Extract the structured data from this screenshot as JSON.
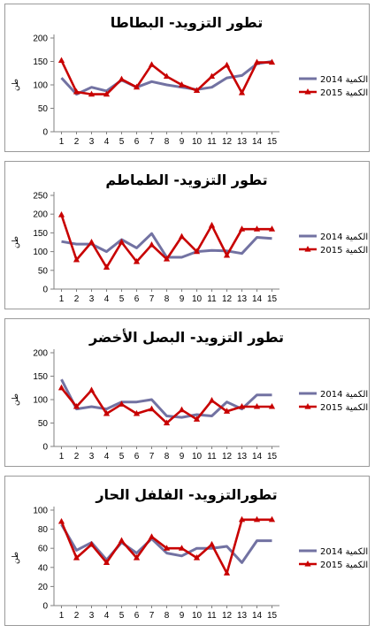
{
  "chart_data": [
    {
      "type": "line",
      "title": "تطور التزويد- البطاطا",
      "ylabel": "طن",
      "ylim": [
        0,
        200
      ],
      "yticks": [
        0,
        50,
        100,
        150,
        200
      ],
      "categories": [
        "1",
        "2",
        "3",
        "4",
        "5",
        "6",
        "7",
        "8",
        "9",
        "10",
        "11",
        "12",
        "13",
        "14",
        "15"
      ],
      "legend_position": "right",
      "series": [
        {
          "name": "الكمية 2014",
          "color": "#7272a2",
          "marker": "none",
          "values": [
            115,
            80,
            95,
            87,
            110,
            95,
            107,
            100,
            95,
            90,
            95,
            115,
            120,
            145,
            150
          ]
        },
        {
          "name": "الكمية 2015",
          "color": "#c80000",
          "marker": "triangle",
          "values": [
            152,
            85,
            80,
            80,
            112,
            95,
            143,
            118,
            100,
            88,
            118,
            142,
            83,
            148,
            148
          ]
        }
      ]
    },
    {
      "type": "line",
      "title": "تطور التزويد- الطماطم",
      "ylabel": "طن",
      "ylim": [
        0,
        250
      ],
      "yticks": [
        0,
        50,
        100,
        150,
        200,
        250
      ],
      "categories": [
        "1",
        "2",
        "3",
        "4",
        "5",
        "6",
        "7",
        "8",
        "9",
        "10",
        "11",
        "12",
        "13",
        "14",
        "15"
      ],
      "legend_position": "right",
      "series": [
        {
          "name": "الكمية 2014",
          "color": "#7272a2",
          "marker": "none",
          "values": [
            127,
            120,
            120,
            100,
            132,
            110,
            148,
            85,
            85,
            100,
            103,
            102,
            95,
            138,
            135
          ]
        },
        {
          "name": "الكمية 2015",
          "color": "#c80000",
          "marker": "triangle",
          "values": [
            198,
            78,
            125,
            58,
            125,
            73,
            118,
            80,
            140,
            100,
            170,
            90,
            160,
            160,
            160
          ]
        }
      ]
    },
    {
      "type": "line",
      "title": "تطور التزويد- البصل الأخضر",
      "ylabel": "طن",
      "ylim": [
        0,
        200
      ],
      "yticks": [
        0,
        50,
        100,
        150,
        200
      ],
      "categories": [
        "1",
        "2",
        "3",
        "4",
        "5",
        "6",
        "7",
        "8",
        "9",
        "10",
        "11",
        "12",
        "13",
        "14",
        "15"
      ],
      "legend_position": "right",
      "series": [
        {
          "name": "الكمية 2014",
          "color": "#7272a2",
          "marker": "none",
          "values": [
            143,
            80,
            85,
            80,
            95,
            95,
            100,
            65,
            62,
            68,
            65,
            95,
            80,
            110,
            110
          ]
        },
        {
          "name": "الكمية 2015",
          "color": "#c80000",
          "marker": "triangle",
          "values": [
            125,
            85,
            120,
            70,
            90,
            70,
            80,
            50,
            78,
            58,
            98,
            75,
            85,
            85,
            85
          ]
        }
      ]
    },
    {
      "type": "line",
      "title": "تطورالتزويد- الفلفل الحار",
      "ylabel": "طن",
      "ylim": [
        0,
        100
      ],
      "yticks": [
        0,
        20,
        40,
        60,
        80,
        100
      ],
      "categories": [
        "1",
        "2",
        "3",
        "4",
        "5",
        "6",
        "7",
        "8",
        "9",
        "10",
        "11",
        "12",
        "13",
        "14",
        "15"
      ],
      "legend_position": "right",
      "series": [
        {
          "name": "الكمية 2014",
          "color": "#7272a2",
          "marker": "none",
          "values": [
            85,
            58,
            66,
            48,
            66,
            55,
            70,
            55,
            52,
            60,
            60,
            62,
            45,
            68,
            68
          ]
        },
        {
          "name": "الكمية 2015",
          "color": "#c80000",
          "marker": "triangle",
          "values": [
            88,
            50,
            64,
            45,
            68,
            50,
            72,
            60,
            60,
            50,
            64,
            34,
            90,
            90,
            90
          ]
        }
      ]
    }
  ]
}
